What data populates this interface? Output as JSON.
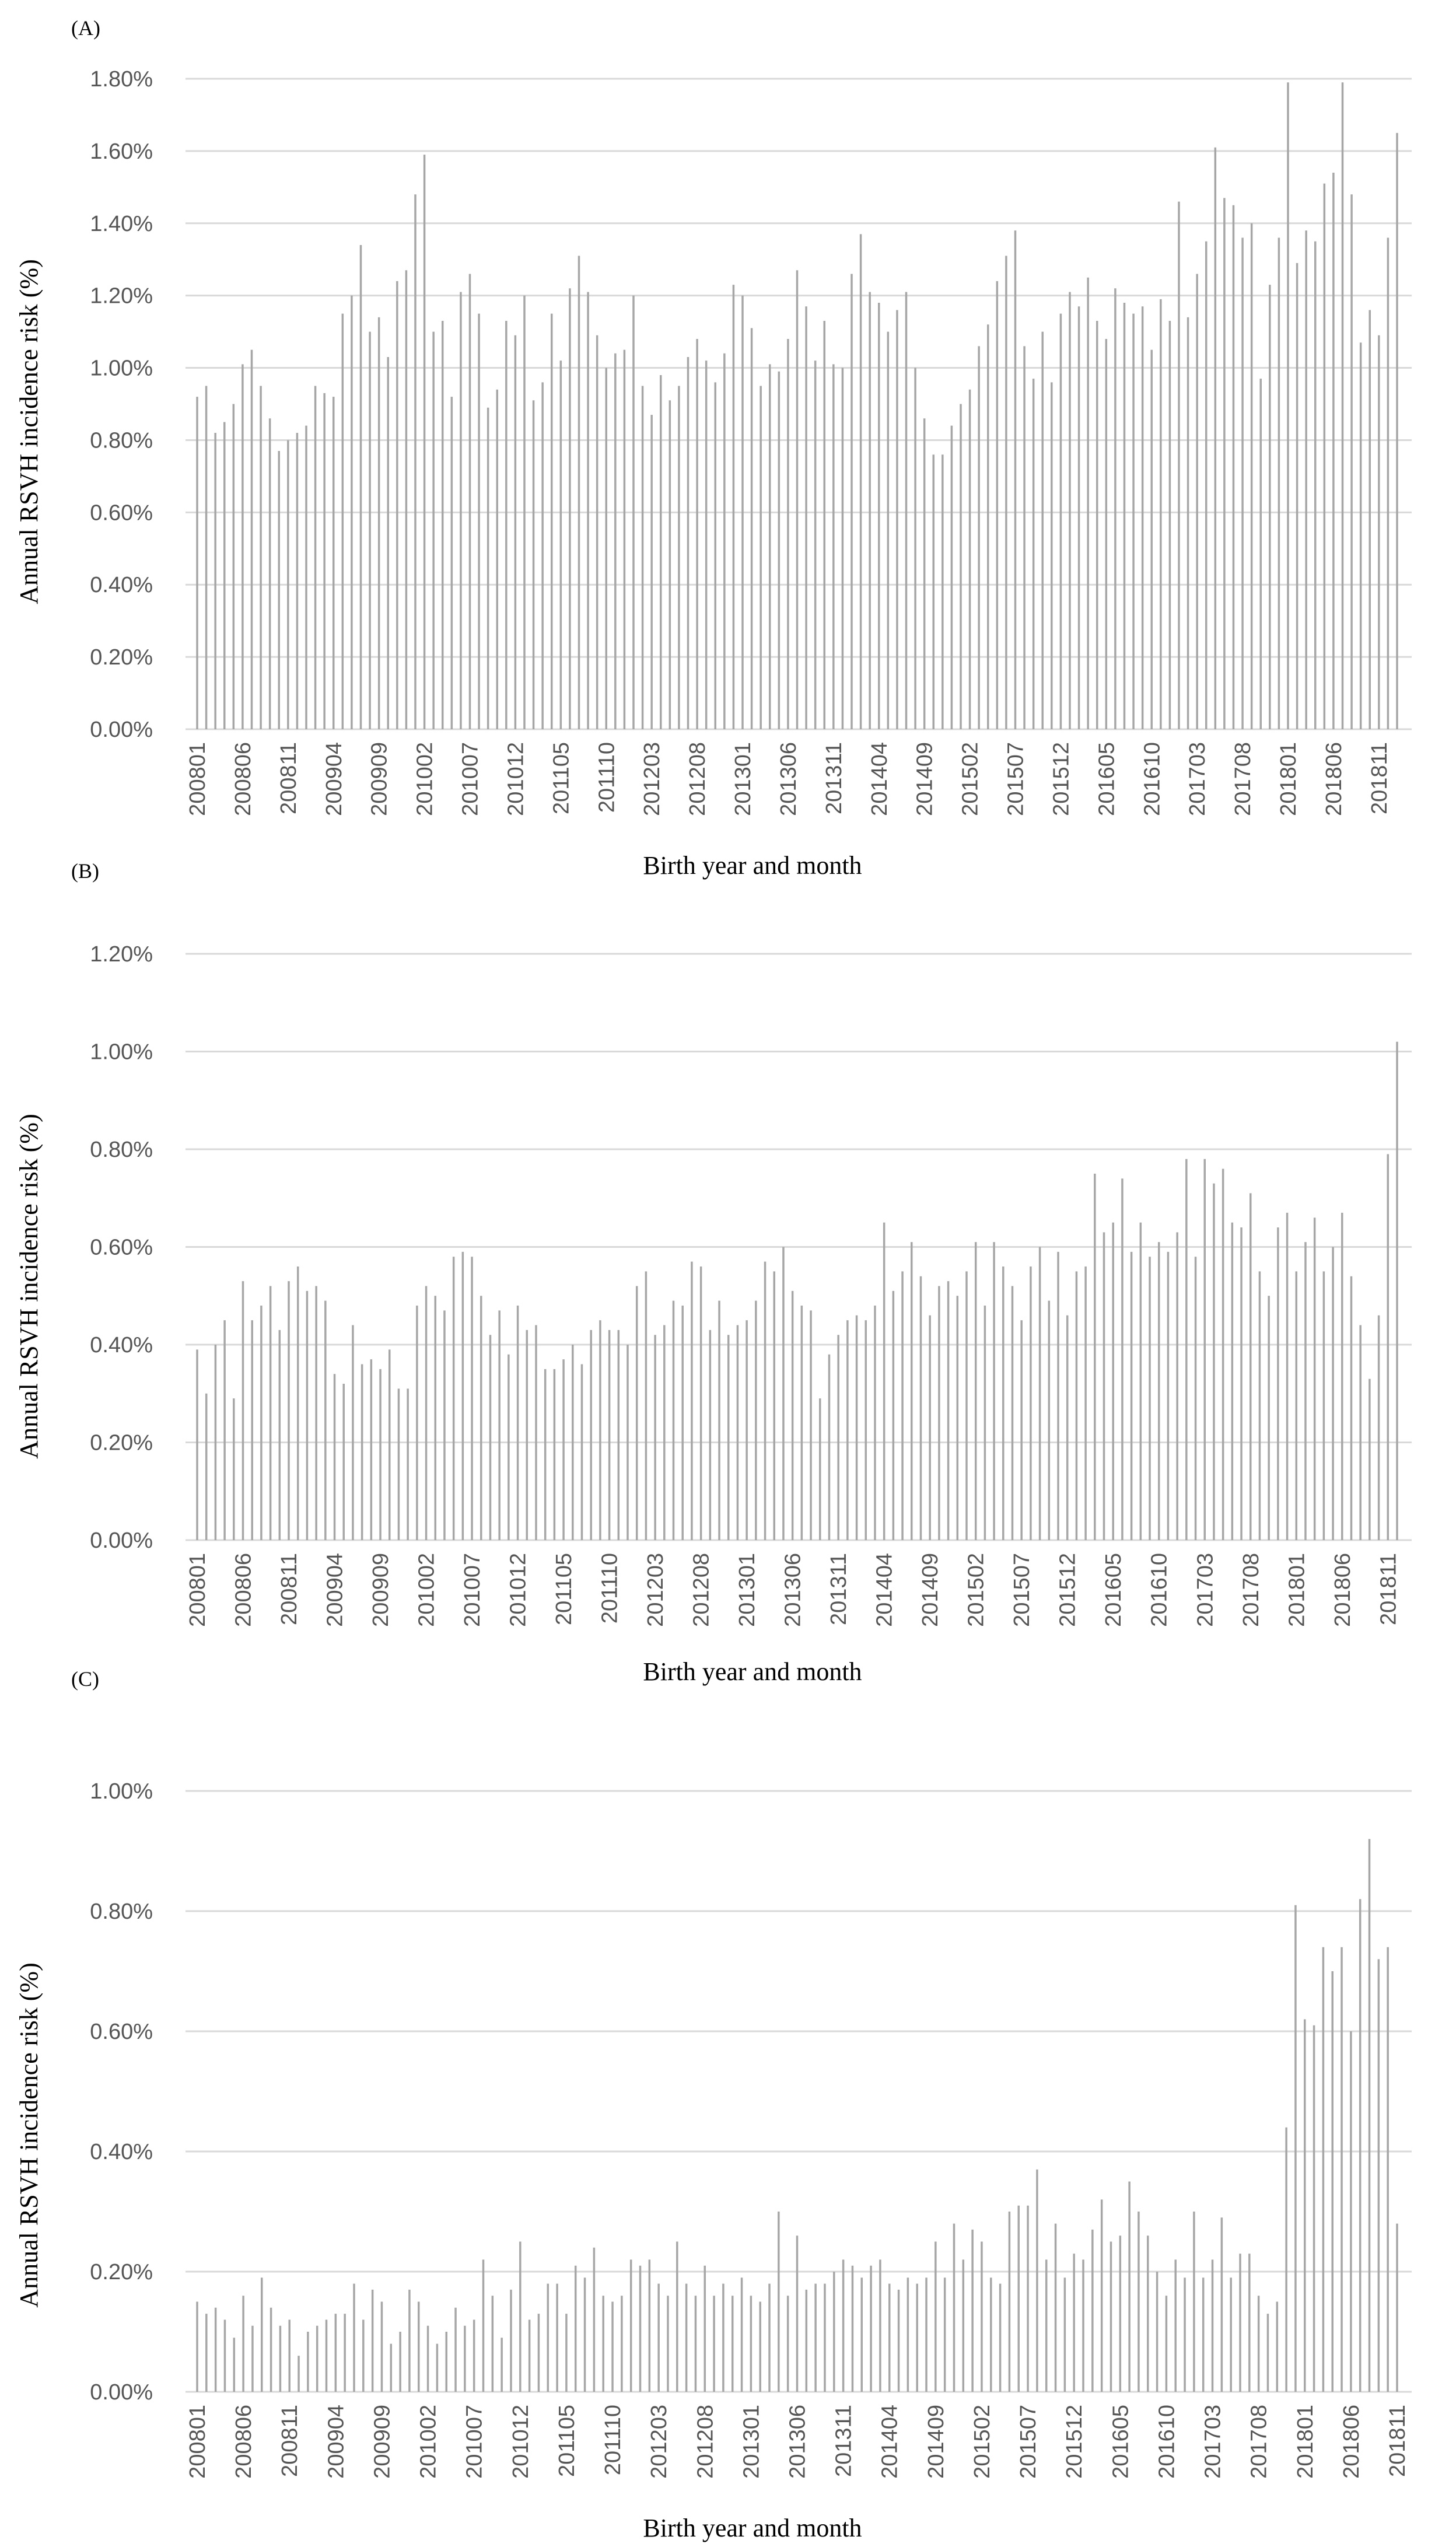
{
  "chart_data": [
    {
      "type": "bar",
      "panel_label": "(A)",
      "xlabel": "Birth year and month",
      "ylabel": "Annual RSVH incidence risk (%)",
      "ylim": [
        0,
        1.8
      ],
      "y_ticks": [
        0,
        0.2,
        0.4,
        0.6,
        0.8,
        1.0,
        1.2,
        1.4,
        1.6,
        1.8
      ],
      "y_tick_labels": [
        "0.00%",
        "0.20%",
        "0.40%",
        "0.60%",
        "0.80%",
        "1.00%",
        "1.20%",
        "1.40%",
        "1.60%",
        "1.80%"
      ],
      "x_tick_labels": [
        "200801",
        "200806",
        "200811",
        "200904",
        "200909",
        "201002",
        "201007",
        "201012",
        "201105",
        "201110",
        "201203",
        "201208",
        "201301",
        "201306",
        "201311",
        "201404",
        "201409",
        "201502",
        "201507",
        "201512",
        "201605",
        "201610",
        "201703",
        "201708",
        "201801",
        "201806",
        "201811"
      ],
      "grid": true,
      "legend": "none",
      "values": [
        0.92,
        0.95,
        0.82,
        0.85,
        0.9,
        1.01,
        1.05,
        0.95,
        0.86,
        0.77,
        0.8,
        0.82,
        0.84,
        0.95,
        0.93,
        0.92,
        1.15,
        1.2,
        1.34,
        1.1,
        1.14,
        1.03,
        1.24,
        1.27,
        1.48,
        1.59,
        1.1,
        1.13,
        0.92,
        1.21,
        1.26,
        1.15,
        0.89,
        0.94,
        1.13,
        1.09,
        1.2,
        0.91,
        0.96,
        1.15,
        1.02,
        1.22,
        1.31,
        1.21,
        1.09,
        1.0,
        1.04,
        1.05,
        1.2,
        0.95,
        0.87,
        0.98,
        0.91,
        0.95,
        1.03,
        1.08,
        1.02,
        0.96,
        1.04,
        1.23,
        1.2,
        1.11,
        0.95,
        1.01,
        0.99,
        1.08,
        1.27,
        1.17,
        1.02,
        1.13,
        1.01,
        1.0,
        1.26,
        1.37,
        1.21,
        1.18,
        1.1,
        1.16,
        1.21,
        1.0,
        0.86,
        0.76,
        0.76,
        0.84,
        0.9,
        0.94,
        1.06,
        1.12,
        1.24,
        1.31,
        1.38,
        1.06,
        0.97,
        1.1,
        0.96,
        1.15,
        1.21,
        1.17,
        1.25,
        1.13,
        1.08,
        1.22,
        1.18,
        1.15,
        1.17,
        1.05,
        1.19,
        1.13,
        1.46,
        1.14,
        1.26,
        1.35,
        1.61,
        1.47,
        1.45,
        1.36,
        1.4,
        0.97,
        1.23,
        1.36,
        1.79,
        1.29,
        1.38,
        1.35,
        1.51,
        1.54,
        1.79,
        1.48,
        1.07,
        1.16,
        1.09,
        1.36,
        1.65
      ]
    },
    {
      "type": "bar",
      "panel_label": "(B)",
      "xlabel": "Birth year and month",
      "ylabel": "Annual RSVH incidence risk (%)",
      "ylim": [
        0,
        1.2
      ],
      "y_ticks": [
        0,
        0.2,
        0.4,
        0.6,
        0.8,
        1.0,
        1.2
      ],
      "y_tick_labels": [
        "0.00%",
        "0.20%",
        "0.40%",
        "0.60%",
        "0.80%",
        "1.00%",
        "1.20%"
      ],
      "x_tick_labels": [
        "200801",
        "200806",
        "200811",
        "200904",
        "200909",
        "201002",
        "201007",
        "201012",
        "201105",
        "201110",
        "201203",
        "201208",
        "201301",
        "201306",
        "201311",
        "201404",
        "201409",
        "201502",
        "201507",
        "201512",
        "201605",
        "201610",
        "201703",
        "201708",
        "201801",
        "201806",
        "201811"
      ],
      "grid": true,
      "legend": "none",
      "values": [
        0.39,
        0.3,
        0.4,
        0.45,
        0.29,
        0.53,
        0.45,
        0.48,
        0.52,
        0.43,
        0.53,
        0.56,
        0.51,
        0.52,
        0.49,
        0.34,
        0.32,
        0.44,
        0.36,
        0.37,
        0.35,
        0.39,
        0.31,
        0.31,
        0.48,
        0.52,
        0.5,
        0.47,
        0.58,
        0.59,
        0.58,
        0.5,
        0.42,
        0.47,
        0.38,
        0.48,
        0.43,
        0.44,
        0.35,
        0.35,
        0.37,
        0.4,
        0.36,
        0.43,
        0.45,
        0.43,
        0.43,
        0.4,
        0.52,
        0.55,
        0.42,
        0.44,
        0.49,
        0.48,
        0.57,
        0.56,
        0.43,
        0.49,
        0.42,
        0.44,
        0.45,
        0.49,
        0.57,
        0.55,
        0.6,
        0.51,
        0.48,
        0.47,
        0.29,
        0.38,
        0.42,
        0.45,
        0.46,
        0.45,
        0.48,
        0.65,
        0.51,
        0.55,
        0.61,
        0.54,
        0.46,
        0.52,
        0.53,
        0.5,
        0.55,
        0.61,
        0.48,
        0.61,
        0.56,
        0.52,
        0.45,
        0.56,
        0.6,
        0.49,
        0.59,
        0.46,
        0.55,
        0.56,
        0.75,
        0.63,
        0.65,
        0.74,
        0.59,
        0.65,
        0.58,
        0.61,
        0.59,
        0.63,
        0.78,
        0.58,
        0.78,
        0.73,
        0.76,
        0.65,
        0.64,
        0.71,
        0.55,
        0.5,
        0.64,
        0.67,
        0.55,
        0.61,
        0.66,
        0.55,
        0.6,
        0.67,
        0.54,
        0.44,
        0.33,
        0.46,
        0.79,
        1.02
      ]
    },
    {
      "type": "bar",
      "panel_label": "(C)",
      "xlabel": "Birth year and month",
      "ylabel": "Annual RSVH incidence risk (%)",
      "ylim": [
        0,
        1.0
      ],
      "y_ticks": [
        0,
        0.2,
        0.4,
        0.6,
        0.8,
        1.0
      ],
      "y_tick_labels": [
        "0.00%",
        "0.20%",
        "0.40%",
        "0.60%",
        "0.80%",
        "1.00%"
      ],
      "x_tick_labels": [
        "200801",
        "200806",
        "200811",
        "200904",
        "200909",
        "201002",
        "201007",
        "201012",
        "201105",
        "201110",
        "201203",
        "201208",
        "201301",
        "201306",
        "201311",
        "201404",
        "201409",
        "201502",
        "201507",
        "201512",
        "201605",
        "201610",
        "201703",
        "201708",
        "201801",
        "201806",
        "201811"
      ],
      "grid": true,
      "legend": "none",
      "values": [
        0.15,
        0.13,
        0.14,
        0.12,
        0.09,
        0.16,
        0.11,
        0.19,
        0.14,
        0.11,
        0.12,
        0.06,
        0.1,
        0.11,
        0.12,
        0.13,
        0.13,
        0.18,
        0.12,
        0.17,
        0.15,
        0.08,
        0.1,
        0.17,
        0.15,
        0.11,
        0.08,
        0.1,
        0.14,
        0.11,
        0.12,
        0.22,
        0.16,
        0.09,
        0.17,
        0.25,
        0.12,
        0.13,
        0.18,
        0.18,
        0.13,
        0.21,
        0.19,
        0.24,
        0.16,
        0.15,
        0.16,
        0.22,
        0.21,
        0.22,
        0.18,
        0.16,
        0.25,
        0.18,
        0.16,
        0.21,
        0.16,
        0.18,
        0.16,
        0.19,
        0.16,
        0.15,
        0.18,
        0.3,
        0.16,
        0.26,
        0.17,
        0.18,
        0.18,
        0.2,
        0.22,
        0.21,
        0.19,
        0.21,
        0.22,
        0.18,
        0.17,
        0.19,
        0.18,
        0.19,
        0.25,
        0.19,
        0.28,
        0.22,
        0.27,
        0.25,
        0.19,
        0.18,
        0.3,
        0.31,
        0.31,
        0.37,
        0.22,
        0.28,
        0.19,
        0.23,
        0.22,
        0.27,
        0.32,
        0.25,
        0.26,
        0.35,
        0.3,
        0.26,
        0.2,
        0.16,
        0.22,
        0.19,
        0.3,
        0.19,
        0.22,
        0.29,
        0.19,
        0.23,
        0.23,
        0.16,
        0.13,
        0.15,
        0.44,
        0.81,
        0.62,
        0.61,
        0.74,
        0.7,
        0.74,
        0.6,
        0.82,
        0.92,
        0.72,
        0.74,
        0.28
      ]
    }
  ]
}
